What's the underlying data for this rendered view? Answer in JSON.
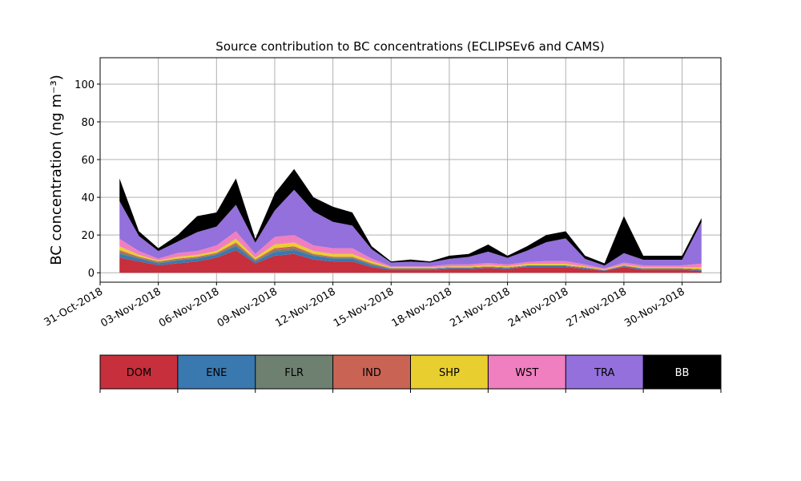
{
  "chart_data": {
    "type": "stacked_area",
    "title": "Source contribution to BC concentrations (ECLIPSEv6 and CAMS)",
    "ylabel": "BC concentration (ng m⁻³)",
    "x": [
      "2018-11-01",
      "2018-11-02",
      "2018-11-03",
      "2018-11-04",
      "2018-11-05",
      "2018-11-06",
      "2018-11-07",
      "2018-11-08",
      "2018-11-09",
      "2018-11-10",
      "2018-11-11",
      "2018-11-12",
      "2018-11-13",
      "2018-11-14",
      "2018-11-15",
      "2018-11-16",
      "2018-11-17",
      "2018-11-18",
      "2018-11-19",
      "2018-11-20",
      "2018-11-21",
      "2018-11-22",
      "2018-11-23",
      "2018-11-24",
      "2018-11-25",
      "2018-11-26",
      "2018-11-27",
      "2018-11-28",
      "2018-11-29",
      "2018-11-30",
      "2018-12-01"
    ],
    "series": [
      {
        "name": "DOM",
        "color": "#c62f3b",
        "values": [
          8,
          6,
          4,
          5,
          6,
          8,
          12,
          5,
          9,
          10,
          7,
          6,
          6,
          3,
          1.5,
          1.5,
          1.5,
          2,
          2,
          2.5,
          2,
          3,
          3,
          3,
          2,
          1,
          3,
          1.5,
          1.5,
          1.5,
          1
        ]
      },
      {
        "name": "ENE",
        "color": "#3a78b0",
        "values": [
          2,
          1.5,
          1,
          1.5,
          1.5,
          1.5,
          2,
          1,
          2,
          2,
          2,
          1.5,
          1.5,
          1,
          0.5,
          0.5,
          0.5,
          0.5,
          0.5,
          0.5,
          0.5,
          0.5,
          0.5,
          0.5,
          0.5,
          0.3,
          0.5,
          0.5,
          0.5,
          0.5,
          0.5
        ]
      },
      {
        "name": "FLR",
        "color": "#6e8070",
        "values": [
          1,
          0.5,
          0.5,
          0.5,
          0.5,
          0.5,
          1,
          0.5,
          1,
          1,
          0.5,
          0.5,
          0.5,
          0.5,
          0.2,
          0.2,
          0.2,
          0.2,
          0.2,
          0.2,
          0.2,
          0.2,
          0.2,
          0.2,
          0.2,
          0.1,
          0.2,
          0.2,
          0.2,
          0.2,
          0.2
        ]
      },
      {
        "name": "IND",
        "color": "#c96455",
        "values": [
          1,
          0.5,
          0.5,
          0.5,
          0.5,
          0.5,
          1,
          0.5,
          1,
          1,
          0.5,
          0.5,
          0.5,
          0.5,
          0.2,
          0.2,
          0.2,
          0.2,
          0.2,
          0.2,
          0.2,
          0.2,
          0.2,
          0.2,
          0.2,
          0.1,
          0.2,
          0.2,
          0.2,
          0.2,
          0.2
        ]
      },
      {
        "name": "SHP",
        "color": "#e8cf2f",
        "values": [
          2,
          1,
          0.5,
          1,
          1,
          1,
          2,
          1,
          2,
          2,
          1.5,
          1.5,
          1.5,
          1,
          0.5,
          0.5,
          0.5,
          0.5,
          0.5,
          0.8,
          0.5,
          0.8,
          0.8,
          0.8,
          0.5,
          0.3,
          0.5,
          0.5,
          0.5,
          0.5,
          1
        ]
      },
      {
        "name": "WST",
        "color": "#f07fc0",
        "values": [
          4,
          2,
          1,
          2,
          2,
          3,
          4,
          2,
          4,
          4,
          3,
          3,
          3,
          1.5,
          0.5,
          0.5,
          0.5,
          1,
          1,
          1,
          1,
          1,
          1.5,
          1.5,
          1,
          0.5,
          1,
          1,
          1,
          1,
          2
        ]
      },
      {
        "name": "TRA",
        "color": "#9370db",
        "values": [
          20,
          8,
          4,
          6,
          10,
          10,
          14,
          6,
          14,
          24,
          18,
          14,
          12,
          5,
          2,
          2.5,
          2,
          3,
          4,
          6,
          3.5,
          6,
          10,
          12,
          3,
          1.5,
          5,
          3,
          3,
          3,
          22
        ]
      },
      {
        "name": "BB",
        "color": "#000000",
        "values": [
          12,
          2.5,
          1.5,
          3.5,
          8.5,
          7.5,
          14,
          2,
          9,
          11,
          7.5,
          8,
          7,
          1.5,
          0.6,
          1.1,
          0.6,
          1.6,
          1.6,
          3.8,
          1.1,
          2.3,
          3.8,
          3.8,
          1.6,
          1.2,
          19.6,
          2.1,
          2.1,
          2.1,
          2.1
        ]
      }
    ],
    "xlim": [
      "2018-10-31",
      "2018-12-02"
    ],
    "xticks": [
      {
        "value": "2018-10-31",
        "label": "31-Oct-2018"
      },
      {
        "value": "2018-11-03",
        "label": "03-Nov-2018"
      },
      {
        "value": "2018-11-06",
        "label": "06-Nov-2018"
      },
      {
        "value": "2018-11-09",
        "label": "09-Nov-2018"
      },
      {
        "value": "2018-11-12",
        "label": "12-Nov-2018"
      },
      {
        "value": "2018-11-15",
        "label": "15-Nov-2018"
      },
      {
        "value": "2018-11-18",
        "label": "18-Nov-2018"
      },
      {
        "value": "2018-11-21",
        "label": "21-Nov-2018"
      },
      {
        "value": "2018-11-24",
        "label": "24-Nov-2018"
      },
      {
        "value": "2018-11-27",
        "label": "27-Nov-2018"
      },
      {
        "value": "2018-11-30",
        "label": "30-Nov-2018"
      }
    ],
    "ylim": [
      -5,
      114
    ],
    "yticks": [
      0,
      20,
      40,
      60,
      80,
      100
    ],
    "grid": true
  }
}
